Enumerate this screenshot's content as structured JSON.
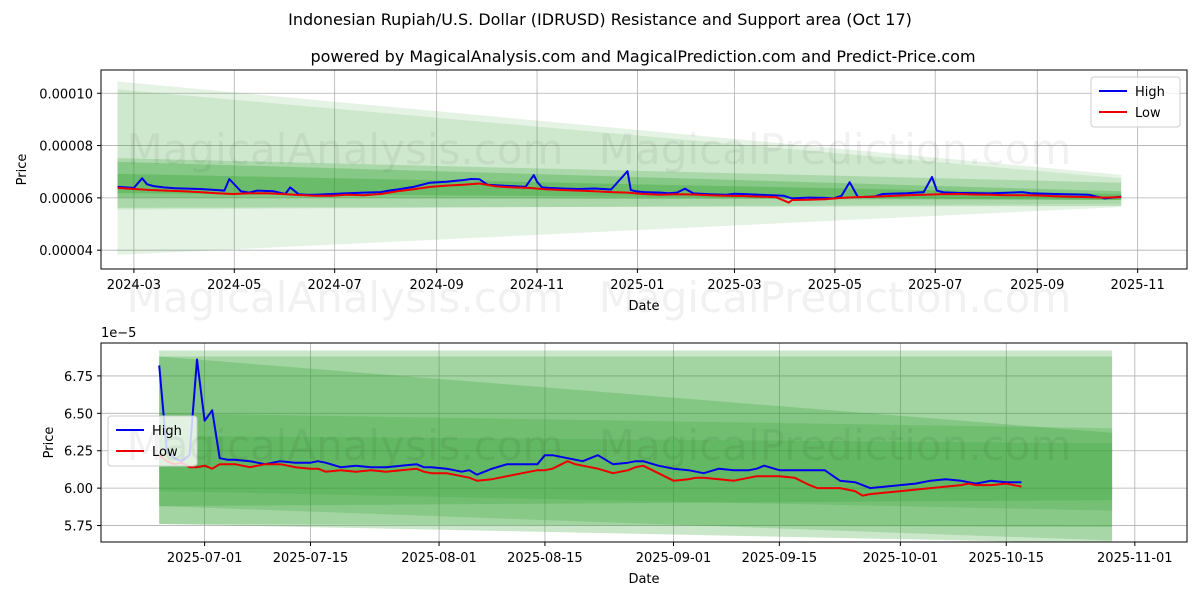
{
  "title": "Indonesian Rupiah/U.S. Dollar (IDRUSD) Resistance and Support area (Oct 17)",
  "subtitle": "powered by MagicalAnalysis.com and MagicalPrediction.com and Predict-Price.com",
  "watermarks": [
    "MagicalAnalysis.com",
    "MagicalPrediction.com"
  ],
  "colors": {
    "high": "#0000ee",
    "low": "#ee0000",
    "band": "#2ca02c"
  },
  "chart_data": [
    {
      "type": "line",
      "panel": "top",
      "xlabel": "Date",
      "ylabel": "Price",
      "xlim": [
        -20,
        640
      ],
      "ylim": [
        3.28e-05,
        0.0001089
      ],
      "grid": true,
      "legend_position": "top-right",
      "x_ticks": [
        {
          "label": "2024-03",
          "x": 0
        },
        {
          "label": "2024-05",
          "x": 61
        },
        {
          "label": "2024-07",
          "x": 122
        },
        {
          "label": "2024-09",
          "x": 184
        },
        {
          "label": "2024-11",
          "x": 245
        },
        {
          "label": "2025-01",
          "x": 306
        },
        {
          "label": "2025-03",
          "x": 365
        },
        {
          "label": "2025-05",
          "x": 426
        },
        {
          "label": "2025-07",
          "x": 487
        },
        {
          "label": "2025-09",
          "x": 549
        },
        {
          "label": "2025-11",
          "x": 610
        }
      ],
      "y_ticks": [
        {
          "label": "0.00004",
          "y": 4e-05
        },
        {
          "label": "0.00006",
          "y": 6e-05
        },
        {
          "label": "0.00008",
          "y": 8e-05
        },
        {
          "label": "0.00010",
          "y": 0.0001
        }
      ],
      "series": [
        {
          "name": "High",
          "x": [
            -10,
            0,
            5,
            8,
            12,
            18,
            25,
            35,
            40,
            45,
            50,
            55,
            58,
            65,
            70,
            75,
            85,
            92,
            95,
            100,
            105,
            110,
            120,
            130,
            140,
            150,
            155,
            160,
            170,
            180,
            185,
            190,
            195,
            200,
            205,
            210,
            215,
            220,
            225,
            230,
            238,
            243,
            245,
            248,
            252,
            260,
            270,
            280,
            290,
            300,
            302,
            305,
            310,
            320,
            325,
            330,
            335,
            340,
            350,
            360,
            365,
            370,
            380,
            395,
            400,
            410,
            420,
            425,
            430,
            435,
            440,
            450,
            455,
            470,
            475,
            480,
            485,
            488,
            492,
            500,
            520,
            540,
            545,
            560,
            580,
            590,
            600
          ],
          "values": [
            6.42e-05,
            6.38e-05,
            6.75e-05,
            6.52e-05,
            6.45e-05,
            6.4e-05,
            6.37e-05,
            6.35e-05,
            6.34e-05,
            6.32e-05,
            6.3e-05,
            6.28e-05,
            6.72e-05,
            6.25e-05,
            6.2e-05,
            6.28e-05,
            6.25e-05,
            6.15e-05,
            6.4e-05,
            6.14e-05,
            6.12e-05,
            6.12e-05,
            6.15e-05,
            6.18e-05,
            6.2e-05,
            6.22e-05,
            6.28e-05,
            6.32e-05,
            6.42e-05,
            6.58e-05,
            6.6e-05,
            6.62e-05,
            6.65e-05,
            6.68e-05,
            6.72e-05,
            6.71e-05,
            6.5e-05,
            6.48e-05,
            6.46e-05,
            6.45e-05,
            6.42e-05,
            6.87e-05,
            6.62e-05,
            6.4e-05,
            6.38e-05,
            6.36e-05,
            6.34e-05,
            6.36e-05,
            6.32e-05,
            7.02e-05,
            6.3e-05,
            6.25e-05,
            6.22e-05,
            6.2e-05,
            6.18e-05,
            6.2e-05,
            6.35e-05,
            6.17e-05,
            6.14e-05,
            6.12e-05,
            6.16e-05,
            6.15e-05,
            6.12e-05,
            6.08e-05,
            5.98e-05,
            6.01e-05,
            6e-05,
            5.98e-05,
            6.08e-05,
            6.6e-05,
            6.03e-05,
            6.05e-05,
            6.15e-05,
            6.18e-05,
            6.2e-05,
            6.22e-05,
            6.8e-05,
            6.28e-05,
            6.21e-05,
            6.19e-05,
            6.17e-05,
            6.22e-05,
            6.18e-05,
            6.15e-05,
            6.12e-05,
            5.98e-05,
            6.04e-05
          ]
        },
        {
          "name": "Low",
          "x": [
            -10,
            0,
            10,
            20,
            30,
            40,
            50,
            60,
            70,
            80,
            90,
            100,
            110,
            120,
            130,
            140,
            150,
            160,
            170,
            180,
            190,
            200,
            210,
            220,
            230,
            240,
            250,
            260,
            270,
            280,
            290,
            300,
            310,
            320,
            330,
            340,
            350,
            360,
            370,
            380,
            390,
            398,
            400,
            410,
            420,
            430,
            440,
            450,
            460,
            470,
            480,
            490,
            500,
            510,
            520,
            530,
            540,
            550,
            560,
            570,
            580,
            590,
            600
          ],
          "values": [
            6.38e-05,
            6.34e-05,
            6.3e-05,
            6.28e-05,
            6.25e-05,
            6.22e-05,
            6.18e-05,
            6.15e-05,
            6.17e-05,
            6.18e-05,
            6.15e-05,
            6.11e-05,
            6.08e-05,
            6.08e-05,
            6.12e-05,
            6.1e-05,
            6.15e-05,
            6.25e-05,
            6.33e-05,
            6.42e-05,
            6.47e-05,
            6.5e-05,
            6.55e-05,
            6.44e-05,
            6.4e-05,
            6.38e-05,
            6.33e-05,
            6.3e-05,
            6.28e-05,
            6.25e-05,
            6.22e-05,
            6.2e-05,
            6.15e-05,
            6.12e-05,
            6.14e-05,
            6.13e-05,
            6.1e-05,
            6.08e-05,
            6.07e-05,
            6.05e-05,
            6.03e-05,
            5.82e-05,
            5.92e-05,
            5.93e-05,
            5.95e-05,
            6e-05,
            6.03e-05,
            6.05e-05,
            6.07e-05,
            6.1e-05,
            6.12e-05,
            6.14e-05,
            6.15e-05,
            6.13e-05,
            6.12e-05,
            6.1e-05,
            6.1e-05,
            6.09e-05,
            6.06e-05,
            6.04e-05,
            6.03e-05,
            6.01e-05,
            6.03e-05
          ]
        }
      ],
      "bands": [
        {
          "x": [
            -10,
            600
          ],
          "upper": [
            0.0001045,
            6.88e-05
          ],
          "lower": [
            3.82e-05,
            5.65e-05
          ],
          "opacity": 0.12
        },
        {
          "x": [
            -10,
            600
          ],
          "upper": [
            0.0001015,
            6.75e-05
          ],
          "lower": [
            5.55e-05,
            5.78e-05
          ],
          "opacity": 0.12
        },
        {
          "x": [
            -10,
            600
          ],
          "upper": [
            7.52e-05,
            6.58e-05
          ],
          "lower": [
            5.62e-05,
            5.69e-05
          ],
          "opacity": 0.22
        },
        {
          "x": [
            -10,
            600
          ],
          "upper": [
            7.38e-05,
            6.25e-05
          ],
          "lower": [
            6.02e-05,
            5.92e-05
          ],
          "opacity": 0.28
        },
        {
          "x": [
            -10,
            600
          ],
          "upper": [
            6.92e-05,
            6.15e-05
          ],
          "lower": [
            6.18e-05,
            5.92e-05
          ],
          "opacity": 0.3
        }
      ]
    },
    {
      "type": "line",
      "panel": "bottom",
      "xlabel": "Date",
      "ylabel": "Price",
      "y_multiplier": "1e−5",
      "xlim": [
        -7.7,
        135.9
      ],
      "ylim": [
        5.64,
        6.97
      ],
      "grid": true,
      "legend_position": "middle-left",
      "x_ticks": [
        {
          "label": "2025-07-01",
          "x": 6
        },
        {
          "label": "2025-07-15",
          "x": 20
        },
        {
          "label": "2025-08-01",
          "x": 37
        },
        {
          "label": "2025-08-15",
          "x": 51
        },
        {
          "label": "2025-09-01",
          "x": 68
        },
        {
          "label": "2025-09-15",
          "x": 82
        },
        {
          "label": "2025-10-01",
          "x": 98
        },
        {
          "label": "2025-10-15",
          "x": 112
        },
        {
          "label": "2025-11-01",
          "x": 129
        }
      ],
      "y_ticks": [
        {
          "label": "5.75",
          "y": 5.75
        },
        {
          "label": "6.00",
          "y": 6.0
        },
        {
          "label": "6.25",
          "y": 6.25
        },
        {
          "label": "6.50",
          "y": 6.5
        },
        {
          "label": "6.75",
          "y": 6.75
        }
      ],
      "series": [
        {
          "name": "High",
          "x": [
            0,
            1,
            2,
            3,
            4,
            5,
            6,
            7,
            8,
            9,
            10,
            12,
            14,
            16,
            18,
            20,
            21,
            22,
            24,
            26,
            28,
            30,
            32,
            34,
            35,
            36,
            38,
            40,
            41,
            42,
            44,
            46,
            48,
            50,
            51,
            52,
            54,
            55,
            56,
            58,
            60,
            62,
            63,
            64,
            66,
            68,
            70,
            71,
            72,
            74,
            76,
            78,
            79,
            80,
            82,
            84,
            86,
            87,
            88,
            90,
            92,
            93,
            94,
            96,
            98,
            100,
            102,
            104,
            106,
            107,
            108,
            110,
            112,
            114
          ],
          "values": [
            6.82,
            6.25,
            6.2,
            6.18,
            6.22,
            6.86,
            6.45,
            6.52,
            6.2,
            6.19,
            6.19,
            6.18,
            6.16,
            6.18,
            6.17,
            6.17,
            6.18,
            6.17,
            6.14,
            6.15,
            6.14,
            6.14,
            6.15,
            6.16,
            6.14,
            6.14,
            6.13,
            6.11,
            6.12,
            6.09,
            6.13,
            6.16,
            6.16,
            6.16,
            6.22,
            6.22,
            6.2,
            6.19,
            6.18,
            6.22,
            6.16,
            6.17,
            6.18,
            6.18,
            6.15,
            6.13,
            6.12,
            6.11,
            6.1,
            6.13,
            6.12,
            6.12,
            6.13,
            6.15,
            6.12,
            6.12,
            6.12,
            6.12,
            6.12,
            6.05,
            6.04,
            6.02,
            6.0,
            6.01,
            6.02,
            6.03,
            6.05,
            6.06,
            6.05,
            6.04,
            6.03,
            6.05,
            6.04,
            6.04
          ]
        },
        {
          "name": "Low",
          "x": [
            0,
            1,
            2,
            3,
            4,
            5,
            6,
            7,
            8,
            9,
            10,
            12,
            14,
            16,
            18,
            20,
            21,
            22,
            24,
            26,
            28,
            30,
            32,
            34,
            35,
            36,
            38,
            40,
            41,
            42,
            44,
            46,
            48,
            50,
            51,
            52,
            54,
            55,
            56,
            58,
            60,
            62,
            63,
            64,
            66,
            68,
            70,
            71,
            72,
            74,
            76,
            78,
            79,
            80,
            82,
            84,
            86,
            87,
            88,
            90,
            92,
            93,
            94,
            96,
            98,
            100,
            102,
            104,
            106,
            107,
            108,
            110,
            112,
            114
          ],
          "values": [
            6.22,
            6.18,
            6.16,
            6.17,
            6.14,
            6.14,
            6.15,
            6.13,
            6.16,
            6.16,
            6.16,
            6.14,
            6.16,
            6.16,
            6.14,
            6.13,
            6.13,
            6.11,
            6.12,
            6.11,
            6.12,
            6.11,
            6.12,
            6.13,
            6.11,
            6.1,
            6.1,
            6.08,
            6.07,
            6.05,
            6.06,
            6.08,
            6.1,
            6.12,
            6.12,
            6.13,
            6.18,
            6.16,
            6.15,
            6.13,
            6.1,
            6.12,
            6.14,
            6.15,
            6.1,
            6.05,
            6.06,
            6.07,
            6.07,
            6.06,
            6.05,
            6.07,
            6.08,
            6.08,
            6.08,
            6.07,
            6.02,
            6.0,
            6.0,
            6.0,
            5.98,
            5.95,
            5.96,
            5.97,
            5.98,
            5.99,
            6.0,
            6.01,
            6.02,
            6.03,
            6.02,
            6.02,
            6.03,
            6.01
          ]
        }
      ],
      "bands": [
        {
          "x": [
            0,
            126
          ],
          "upper": [
            6.92,
            6.92
          ],
          "lower": [
            5.76,
            5.63
          ],
          "opacity": 0.25
        },
        {
          "x": [
            0,
            126
          ],
          "upper": [
            6.88,
            6.37
          ],
          "lower": [
            5.76,
            5.74
          ],
          "opacity": 0.25
        },
        {
          "x": [
            0,
            126
          ],
          "upper": [
            6.88,
            6.88
          ],
          "lower": [
            5.88,
            5.92
          ],
          "opacity": 0.25
        },
        {
          "x": [
            0,
            126
          ],
          "upper": [
            6.5,
            6.4
          ],
          "lower": [
            5.88,
            5.65
          ],
          "opacity": 0.22
        },
        {
          "x": [
            0,
            126
          ],
          "upper": [
            6.35,
            6.3
          ],
          "lower": [
            5.98,
            5.85
          ],
          "opacity": 0.2
        }
      ]
    }
  ]
}
